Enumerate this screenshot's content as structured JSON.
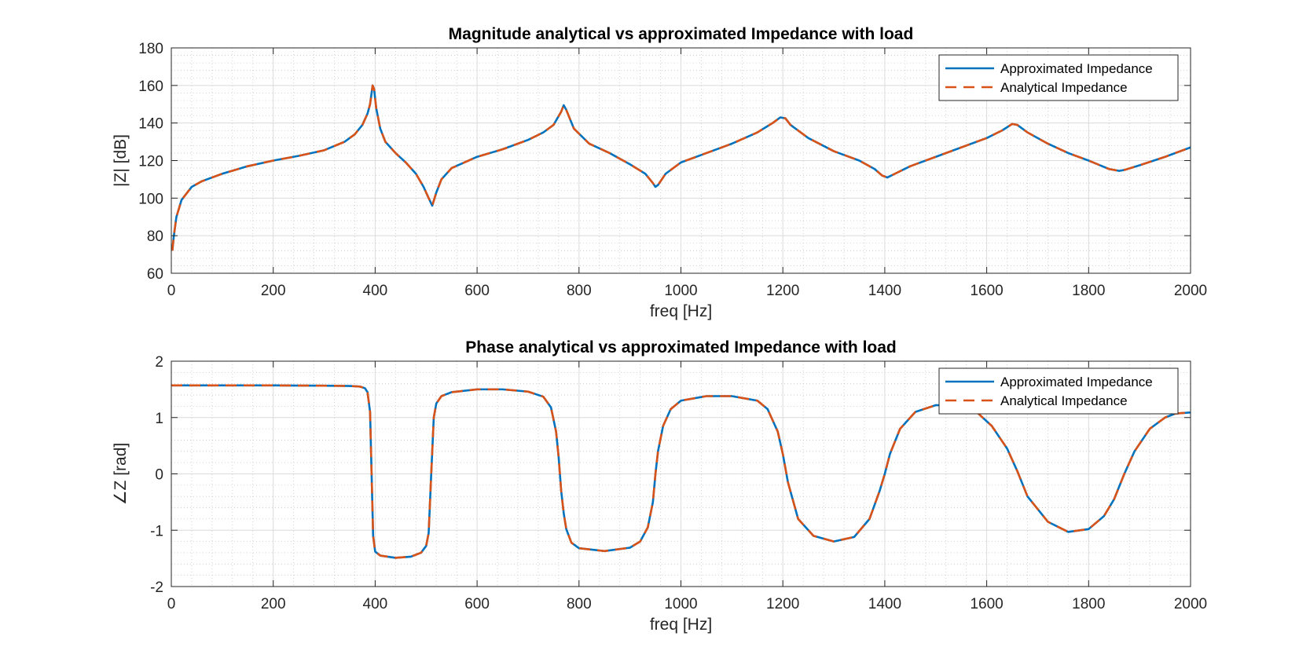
{
  "colors": {
    "approximated": "#0072BD",
    "analytical": "#D95319",
    "grid_major": "#dcdcdc",
    "grid_minor": "#c8c8c8",
    "axis": "#262626"
  },
  "chart_data": [
    {
      "type": "line",
      "title": "Magnitude analytical vs approximated Impedance with load",
      "xlabel": "freq [Hz]",
      "ylabel": "|Z| [dB]",
      "xlim": [
        0,
        2000
      ],
      "ylim": [
        60,
        180
      ],
      "xticks": [
        0,
        200,
        400,
        600,
        800,
        1000,
        1200,
        1400,
        1600,
        1800,
        2000
      ],
      "yticks": [
        60,
        80,
        100,
        120,
        140,
        160,
        180
      ],
      "grid": true,
      "minor_grid": true,
      "legend_position": "top-right",
      "series": [
        {
          "name": "Approximated Impedance",
          "style": "solid",
          "x": [
            2,
            5,
            10,
            20,
            40,
            60,
            100,
            150,
            200,
            250,
            300,
            340,
            360,
            375,
            385,
            390,
            395,
            398,
            402,
            410,
            420,
            440,
            460,
            480,
            495,
            505,
            512,
            520,
            530,
            550,
            600,
            650,
            700,
            730,
            750,
            765,
            770,
            775,
            790,
            820,
            860,
            900,
            930,
            945,
            950,
            955,
            970,
            1000,
            1050,
            1100,
            1150,
            1180,
            1195,
            1205,
            1215,
            1250,
            1300,
            1350,
            1380,
            1395,
            1405,
            1420,
            1450,
            1500,
            1550,
            1600,
            1630,
            1650,
            1660,
            1680,
            1720,
            1760,
            1800,
            1840,
            1860,
            1870,
            1900,
            1950,
            2000
          ],
          "values": [
            72,
            80,
            90,
            99,
            106,
            109,
            113,
            117,
            120,
            122.5,
            125.5,
            130,
            134,
            139,
            145,
            150,
            160,
            158,
            148,
            137,
            130,
            124,
            119,
            113,
            106,
            100,
            96,
            103,
            110,
            116,
            122,
            126,
            131,
            135,
            139,
            146,
            149.5,
            147,
            137,
            129,
            124,
            118,
            113,
            108,
            106,
            107,
            113,
            119,
            124,
            129,
            135,
            140,
            143,
            142.5,
            139,
            132,
            125,
            120,
            115.5,
            112,
            111,
            113,
            117,
            122,
            127,
            132,
            136,
            139.5,
            139,
            135,
            129,
            124,
            120,
            115.5,
            114.5,
            115,
            117.5,
            122,
            127
          ]
        },
        {
          "name": "Analytical Impedance",
          "style": "dashed",
          "x": [
            2,
            5,
            10,
            20,
            40,
            60,
            100,
            150,
            200,
            250,
            300,
            340,
            360,
            375,
            385,
            390,
            395,
            398,
            402,
            410,
            420,
            440,
            460,
            480,
            495,
            505,
            512,
            520,
            530,
            550,
            600,
            650,
            700,
            730,
            750,
            765,
            770,
            775,
            790,
            820,
            860,
            900,
            930,
            945,
            950,
            955,
            970,
            1000,
            1050,
            1100,
            1150,
            1180,
            1195,
            1205,
            1215,
            1250,
            1300,
            1350,
            1380,
            1395,
            1405,
            1420,
            1450,
            1500,
            1550,
            1600,
            1630,
            1650,
            1660,
            1680,
            1720,
            1760,
            1800,
            1840,
            1860,
            1870,
            1900,
            1950,
            2000
          ],
          "values": [
            72,
            80,
            90,
            99,
            106,
            109,
            113,
            117,
            120,
            122.5,
            125.5,
            130,
            134,
            139,
            145,
            150,
            160,
            158,
            148,
            137,
            130,
            124,
            119,
            113,
            106,
            100,
            96,
            103,
            110,
            116,
            122,
            126,
            131,
            135,
            139,
            146,
            149.5,
            147,
            137,
            129,
            124,
            118,
            113,
            108,
            106,
            107,
            113,
            119,
            124,
            129,
            135,
            140,
            143,
            142.5,
            139,
            132,
            125,
            120,
            115.5,
            112,
            111,
            113,
            117,
            122,
            127,
            132,
            136,
            139.5,
            139,
            135,
            129,
            124,
            120,
            115.5,
            114.5,
            115,
            117.5,
            122,
            127
          ]
        }
      ]
    },
    {
      "type": "line",
      "title": "Phase analytical vs approximated Impedance with load",
      "xlabel": "freq [Hz]",
      "ylabel": "∠Z [rad]",
      "xlim": [
        0,
        2000
      ],
      "ylim": [
        -2,
        2
      ],
      "xticks": [
        0,
        200,
        400,
        600,
        800,
        1000,
        1200,
        1400,
        1600,
        1800,
        2000
      ],
      "yticks": [
        -2,
        -1,
        0,
        1,
        2
      ],
      "grid": true,
      "minor_grid": true,
      "legend_position": "top-right",
      "series": [
        {
          "name": "Approximated Impedance",
          "style": "solid",
          "x": [
            0,
            100,
            200,
            300,
            350,
            370,
            380,
            385,
            390,
            393,
            396,
            400,
            410,
            440,
            470,
            490,
            500,
            505,
            510,
            515,
            520,
            530,
            550,
            600,
            650,
            700,
            730,
            745,
            755,
            760,
            765,
            770,
            775,
            785,
            800,
            850,
            900,
            920,
            935,
            945,
            950,
            955,
            965,
            980,
            1000,
            1050,
            1100,
            1150,
            1170,
            1190,
            1200,
            1210,
            1230,
            1260,
            1300,
            1340,
            1370,
            1390,
            1400,
            1410,
            1430,
            1460,
            1500,
            1550,
            1580,
            1610,
            1640,
            1660,
            1680,
            1720,
            1760,
            1800,
            1830,
            1850,
            1870,
            1890,
            1920,
            1950,
            1970,
            2000
          ],
          "values": [
            1.57,
            1.57,
            1.57,
            1.565,
            1.56,
            1.55,
            1.52,
            1.45,
            1.1,
            0,
            -1.1,
            -1.38,
            -1.45,
            -1.49,
            -1.47,
            -1.4,
            -1.28,
            -1.05,
            0,
            1.0,
            1.25,
            1.38,
            1.45,
            1.5,
            1.5,
            1.46,
            1.37,
            1.18,
            0.75,
            0.3,
            -0.3,
            -0.7,
            -0.98,
            -1.22,
            -1.32,
            -1.37,
            -1.31,
            -1.2,
            -0.95,
            -0.5,
            0,
            0.4,
            0.85,
            1.15,
            1.3,
            1.38,
            1.38,
            1.3,
            1.15,
            0.75,
            0.35,
            -0.15,
            -0.8,
            -1.1,
            -1.2,
            -1.12,
            -0.8,
            -0.3,
            0,
            0.35,
            0.8,
            1.1,
            1.22,
            1.2,
            1.1,
            0.85,
            0.45,
            0.05,
            -0.4,
            -0.85,
            -1.03,
            -0.98,
            -0.75,
            -0.45,
            0,
            0.4,
            0.8,
            1.0,
            1.07,
            1.09
          ]
        },
        {
          "name": "Analytical Impedance",
          "style": "dashed",
          "x": [
            0,
            100,
            200,
            300,
            350,
            370,
            380,
            385,
            390,
            393,
            396,
            400,
            410,
            440,
            470,
            490,
            500,
            505,
            510,
            515,
            520,
            530,
            550,
            600,
            650,
            700,
            730,
            745,
            755,
            760,
            765,
            770,
            775,
            785,
            800,
            850,
            900,
            920,
            935,
            945,
            950,
            955,
            965,
            980,
            1000,
            1050,
            1100,
            1150,
            1170,
            1190,
            1200,
            1210,
            1230,
            1260,
            1300,
            1340,
            1370,
            1390,
            1400,
            1410,
            1430,
            1460,
            1500,
            1550,
            1580,
            1610,
            1640,
            1660,
            1680,
            1720,
            1760,
            1800,
            1830,
            1850,
            1870,
            1890,
            1920,
            1950,
            1970,
            2000
          ],
          "values": [
            1.57,
            1.57,
            1.57,
            1.565,
            1.56,
            1.55,
            1.52,
            1.45,
            1.1,
            0,
            -1.1,
            -1.38,
            -1.45,
            -1.49,
            -1.47,
            -1.4,
            -1.28,
            -1.05,
            0,
            1.0,
            1.25,
            1.38,
            1.45,
            1.5,
            1.5,
            1.46,
            1.37,
            1.18,
            0.75,
            0.3,
            -0.3,
            -0.7,
            -0.98,
            -1.22,
            -1.32,
            -1.37,
            -1.31,
            -1.2,
            -0.95,
            -0.5,
            0,
            0.4,
            0.85,
            1.15,
            1.3,
            1.38,
            1.38,
            1.3,
            1.15,
            0.75,
            0.35,
            -0.15,
            -0.8,
            -1.1,
            -1.2,
            -1.12,
            -0.8,
            -0.3,
            0,
            0.35,
            0.8,
            1.1,
            1.22,
            1.2,
            1.1,
            0.85,
            0.45,
            0.05,
            -0.4,
            -0.85,
            -1.03,
            -0.98,
            -0.75,
            -0.45,
            0,
            0.4,
            0.8,
            1.0,
            1.07,
            1.09
          ]
        }
      ]
    }
  ]
}
